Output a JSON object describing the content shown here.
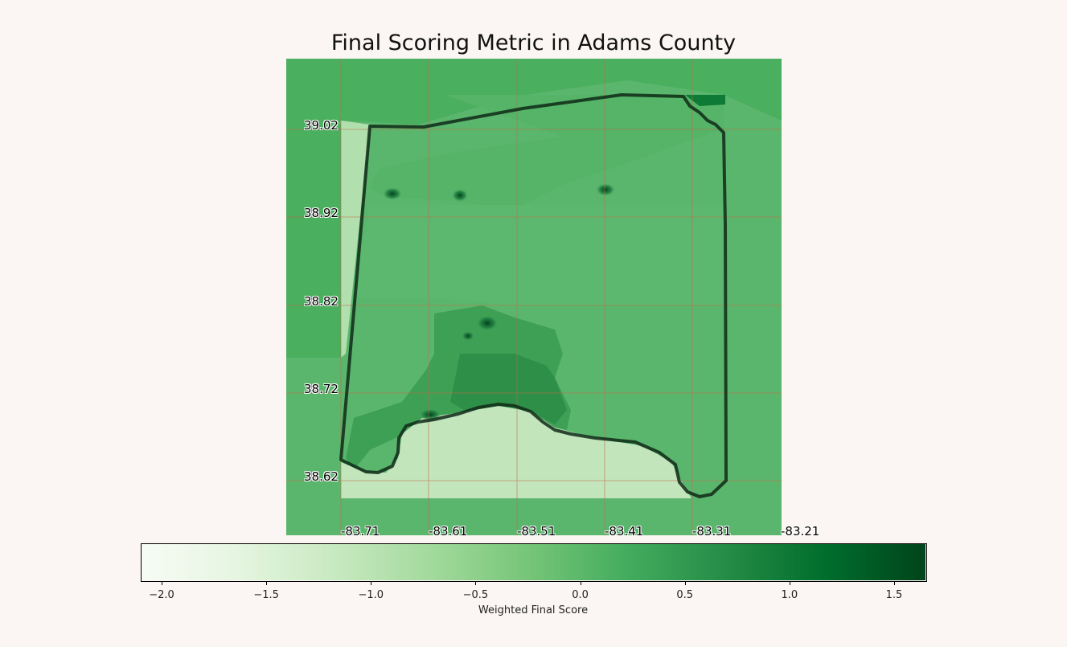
{
  "title": "Final Scoring Metric in Adams County",
  "lat_labels": [
    "39.02",
    "38.92",
    "38.82",
    "38.72",
    "38.62"
  ],
  "lon_labels": [
    "-83.71",
    "-83.61",
    "-83.51",
    "-83.41",
    "-83.31",
    "-83.21"
  ],
  "colorbar": {
    "label": "Weighted Final Score",
    "ticks": [
      "−2.0",
      "−1.5",
      "−1.0",
      "−0.5",
      "0.0",
      "0.5",
      "1.0",
      "1.5"
    ],
    "tick_values": [
      -2.0,
      -1.5,
      -1.0,
      -0.5,
      0.0,
      0.5,
      1.0,
      1.5
    ],
    "range": [
      -2.1,
      1.65
    ],
    "colormap": "Greens"
  },
  "colors": {
    "background": "#fbf6f3",
    "county_outline": "#0f2a17",
    "gridline": "#c06a4a"
  }
}
